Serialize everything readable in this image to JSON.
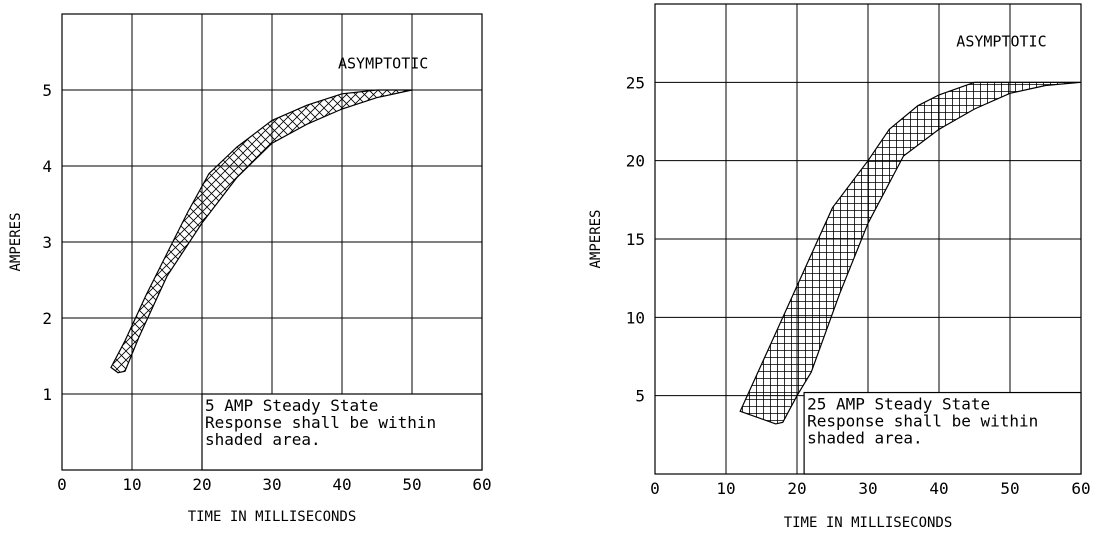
{
  "chart_data": [
    {
      "type": "area",
      "xlabel": "TIME IN MILLISECONDS",
      "ylabel": "AMPERES",
      "xlim": [
        0,
        60
      ],
      "ylim": [
        0,
        6
      ],
      "x_ticks": [
        0,
        10,
        20,
        30,
        40,
        50,
        60
      ],
      "y_ticks": [
        1,
        2,
        3,
        4,
        5
      ],
      "grid": true,
      "annotation_top": "ASYMPTOTIC",
      "annotation_box": [
        "5 AMP Steady State",
        "Response shall be within",
        "shaded area."
      ],
      "fill_pattern": "diagonal-crosshatch",
      "band": {
        "upper": [
          [
            7,
            1.35
          ],
          [
            9,
            1.7
          ],
          [
            12,
            2.3
          ],
          [
            15,
            2.85
          ],
          [
            18,
            3.4
          ],
          [
            21,
            3.9
          ],
          [
            25,
            4.25
          ],
          [
            30,
            4.6
          ],
          [
            35,
            4.8
          ],
          [
            40,
            4.95
          ],
          [
            45,
            5.0
          ],
          [
            50,
            5.0
          ]
        ],
        "lower": [
          [
            50,
            5.0
          ],
          [
            45,
            4.9
          ],
          [
            40,
            4.75
          ],
          [
            35,
            4.55
          ],
          [
            30,
            4.3
          ],
          [
            25,
            3.85
          ],
          [
            20,
            3.25
          ],
          [
            15,
            2.55
          ],
          [
            11,
            1.75
          ],
          [
            9,
            1.3
          ],
          [
            8,
            1.28
          ]
        ]
      }
    },
    {
      "type": "area",
      "xlabel": "TIME IN MILLISECONDS",
      "ylabel": "AMPERES",
      "xlim": [
        0,
        60
      ],
      "ylim": [
        0,
        30
      ],
      "x_ticks": [
        0,
        10,
        20,
        30,
        40,
        50,
        60
      ],
      "y_ticks": [
        5,
        10,
        15,
        20,
        25
      ],
      "grid": true,
      "annotation_top": "ASYMPTOTIC",
      "annotation_box": [
        "25 AMP Steady State",
        "Response shall be within",
        "shaded area."
      ],
      "fill_pattern": "square-crosshatch",
      "band": {
        "upper": [
          [
            12,
            4
          ],
          [
            16,
            8
          ],
          [
            20,
            12
          ],
          [
            25,
            17
          ],
          [
            30,
            20
          ],
          [
            33,
            22
          ],
          [
            37,
            23.5
          ],
          [
            40,
            24.2
          ],
          [
            45,
            25
          ],
          [
            50,
            25
          ],
          [
            60,
            25
          ]
        ],
        "lower": [
          [
            60,
            25
          ],
          [
            55,
            24.8
          ],
          [
            50,
            24.3
          ],
          [
            45,
            23.3
          ],
          [
            40,
            22
          ],
          [
            35,
            20.3
          ],
          [
            30,
            16
          ],
          [
            26,
            11.5
          ],
          [
            22,
            6.5
          ],
          [
            20,
            5
          ],
          [
            18,
            3.3
          ],
          [
            17,
            3.2
          ]
        ]
      }
    }
  ]
}
